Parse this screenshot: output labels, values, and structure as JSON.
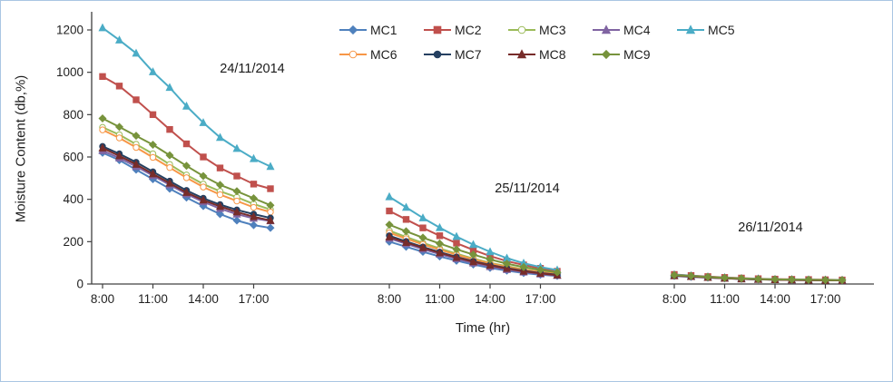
{
  "chart_data": {
    "type": "line",
    "title": "",
    "xlabel": "Time (hr)",
    "ylabel": "Moisture Content  (db,%)",
    "ylim": [
      0,
      1200
    ],
    "yticks": [
      0,
      200,
      400,
      600,
      800,
      1000,
      1200
    ],
    "x_hours": [
      8,
      9,
      10,
      11,
      12,
      13,
      14,
      15,
      16,
      17,
      18
    ],
    "xtick_hours": [
      8,
      11,
      14,
      17
    ],
    "xtick_labels": [
      "8:00",
      "11:00",
      "14:00",
      "17:00"
    ],
    "grid": false,
    "legend_position": "top-inside",
    "axis_color": "#404040",
    "tick_label_color": "#1f1f1f",
    "series": [
      {
        "name": "MC1",
        "color": "#4F81BD",
        "marker": "diamond",
        "fill": "solid"
      },
      {
        "name": "MC2",
        "color": "#C0504D",
        "marker": "square",
        "fill": "solid"
      },
      {
        "name": "MC3",
        "color": "#9BBB59",
        "marker": "circle",
        "fill": "open"
      },
      {
        "name": "MC4",
        "color": "#8064A2",
        "marker": "triangle",
        "fill": "solid"
      },
      {
        "name": "MC5",
        "color": "#4BACC6",
        "marker": "triangle",
        "fill": "solid"
      },
      {
        "name": "MC6",
        "color": "#F79646",
        "marker": "circle",
        "fill": "open"
      },
      {
        "name": "MC7",
        "color": "#254061",
        "marker": "circle",
        "fill": "solid"
      },
      {
        "name": "MC8",
        "color": "#772C2A",
        "marker": "triangle",
        "fill": "solid"
      },
      {
        "name": "MC9",
        "color": "#77933C",
        "marker": "diamond",
        "fill": "solid"
      }
    ],
    "days": [
      {
        "date": "24/11/2014",
        "values": {
          "MC1": [
            620,
            585,
            540,
            495,
            450,
            408,
            368,
            330,
            300,
            278,
            265
          ],
          "MC2": [
            980,
            935,
            870,
            800,
            730,
            662,
            600,
            548,
            510,
            472,
            450
          ],
          "MC3": [
            740,
            705,
            660,
            615,
            565,
            515,
            472,
            438,
            410,
            378,
            352
          ],
          "MC4": [
            630,
            595,
            555,
            512,
            468,
            425,
            388,
            356,
            330,
            310,
            298
          ],
          "MC5": [
            1210,
            1152,
            1090,
            1002,
            928,
            840,
            762,
            692,
            640,
            592,
            555
          ],
          "MC6": [
            728,
            690,
            645,
            598,
            550,
            502,
            458,
            422,
            392,
            362,
            340
          ],
          "MC7": [
            650,
            615,
            575,
            530,
            486,
            442,
            405,
            375,
            350,
            330,
            312
          ],
          "MC8": [
            642,
            605,
            565,
            520,
            476,
            432,
            396,
            366,
            340,
            318,
            300
          ],
          "MC9": [
            782,
            742,
            700,
            658,
            608,
            558,
            510,
            468,
            438,
            405,
            372
          ]
        }
      },
      {
        "date": "25/11/2014",
        "values": {
          "MC1": [
            200,
            176,
            152,
            130,
            110,
            92,
            76,
            63,
            52,
            44,
            38
          ],
          "MC2": [
            345,
            305,
            265,
            228,
            193,
            161,
            132,
            108,
            90,
            74,
            60
          ],
          "MC3": [
            252,
            222,
            194,
            168,
            143,
            120,
            100,
            84,
            70,
            59,
            50
          ],
          "MC4": [
            215,
            190,
            165,
            141,
            119,
            99,
            82,
            68,
            56,
            47,
            40
          ],
          "MC5": [
            412,
            362,
            312,
            266,
            224,
            186,
            152,
            122,
            98,
            80,
            66
          ],
          "MC6": [
            242,
            214,
            187,
            162,
            138,
            116,
            97,
            81,
            67,
            56,
            48
          ],
          "MC7": [
            228,
            201,
            175,
            151,
            128,
            108,
            90,
            75,
            62,
            52,
            44
          ],
          "MC8": [
            222,
            196,
            171,
            147,
            125,
            105,
            88,
            73,
            60,
            50,
            42
          ],
          "MC9": [
            280,
            249,
            219,
            191,
            164,
            139,
            116,
            96,
            80,
            67,
            55
          ]
        }
      },
      {
        "date": "26/11/2014",
        "values": {
          "MC1": [
            38,
            34,
            30,
            27,
            24,
            22,
            21,
            20,
            19,
            19,
            18
          ],
          "MC2": [
            45,
            40,
            35,
            31,
            28,
            25,
            23,
            22,
            21,
            20,
            19
          ],
          "MC3": [
            40,
            36,
            32,
            28,
            25,
            23,
            21,
            20,
            19,
            18,
            18
          ],
          "MC4": [
            39,
            35,
            31,
            27,
            24,
            22,
            20,
            19,
            18,
            18,
            17
          ],
          "MC5": [
            44,
            39,
            34,
            30,
            26,
            24,
            22,
            21,
            20,
            19,
            18
          ],
          "MC6": [
            41,
            37,
            33,
            29,
            25,
            23,
            21,
            20,
            19,
            18,
            17
          ],
          "MC7": [
            40,
            36,
            32,
            28,
            24,
            22,
            21,
            20,
            19,
            18,
            17
          ],
          "MC8": [
            39,
            35,
            31,
            27,
            24,
            22,
            20,
            19,
            18,
            17,
            17
          ],
          "MC9": [
            42,
            38,
            33,
            29,
            26,
            23,
            22,
            21,
            20,
            19,
            18
          ]
        }
      }
    ],
    "annotations": [
      {
        "text": "24/11/2014"
      },
      {
        "text": "25/11/2014"
      },
      {
        "text": "26/11/2014"
      }
    ]
  }
}
